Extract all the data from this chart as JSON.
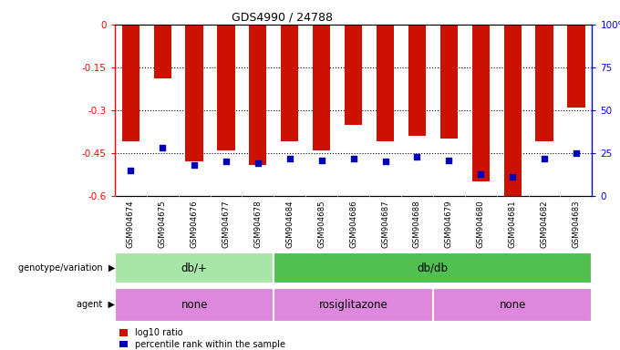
{
  "title": "GDS4990 / 24788",
  "samples": [
    "GSM904674",
    "GSM904675",
    "GSM904676",
    "GSM904677",
    "GSM904678",
    "GSM904684",
    "GSM904685",
    "GSM904686",
    "GSM904687",
    "GSM904688",
    "GSM904679",
    "GSM904680",
    "GSM904681",
    "GSM904682",
    "GSM904683"
  ],
  "log10_ratio": [
    -0.41,
    -0.19,
    -0.48,
    -0.44,
    -0.49,
    -0.41,
    -0.44,
    -0.35,
    -0.41,
    -0.39,
    -0.4,
    -0.55,
    -0.62,
    -0.41,
    -0.29
  ],
  "percentile_rank": [
    15,
    28,
    18,
    20,
    19,
    22,
    21,
    22,
    20,
    23,
    21,
    13,
    11,
    22,
    25
  ],
  "genotype_groups": [
    {
      "label": "db/+",
      "start": 0,
      "end": 5,
      "color": "#a8e6a8"
    },
    {
      "label": "db/db",
      "start": 5,
      "end": 15,
      "color": "#50c050"
    }
  ],
  "agent_groups": [
    {
      "label": "none",
      "start": 0,
      "end": 5
    },
    {
      "label": "rosiglitazone",
      "start": 5,
      "end": 10
    },
    {
      "label": "none",
      "start": 10,
      "end": 15
    }
  ],
  "agent_color": "#dd88dd",
  "ylim_left": [
    -0.6,
    0
  ],
  "ylim_right": [
    0,
    100
  ],
  "yticks_left": [
    0,
    -0.15,
    -0.3,
    -0.45,
    -0.6
  ],
  "yticks_right": [
    0,
    25,
    50,
    75,
    100
  ],
  "bar_color": "#cc1100",
  "dot_color": "#0000bb",
  "background_color": "#ffffff",
  "label_bg_color": "#d0d0d0"
}
